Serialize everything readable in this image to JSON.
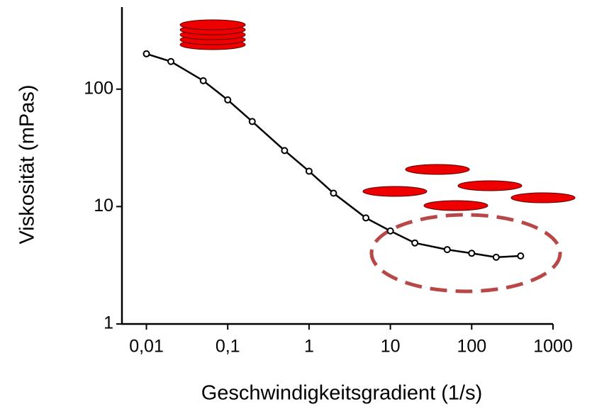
{
  "chart_data": {
    "type": "line",
    "x_label": "Geschwindigkeitsgradient (1/s)",
    "y_label": "Viskosität (mPas)",
    "xscale": "log",
    "yscale": "log",
    "x": [
      0.01,
      0.02,
      0.05,
      0.1,
      0.2,
      0.5,
      1,
      2,
      5,
      10,
      20,
      50,
      100,
      200,
      400
    ],
    "values": [
      200,
      172,
      118,
      81,
      53,
      30,
      20,
      13,
      8,
      6.2,
      4.9,
      4.3,
      4.0,
      3.7,
      3.8
    ],
    "color": "#000000",
    "xlim": [
      0.005,
      1000
    ],
    "ylim": [
      1,
      500
    ],
    "xticks": [
      {
        "value": 0.01,
        "label": "0,01"
      },
      {
        "value": 0.1,
        "label": "0,1"
      },
      1,
      10,
      100,
      1000
    ],
    "yticks": [
      1,
      10,
      100
    ]
  }
}
